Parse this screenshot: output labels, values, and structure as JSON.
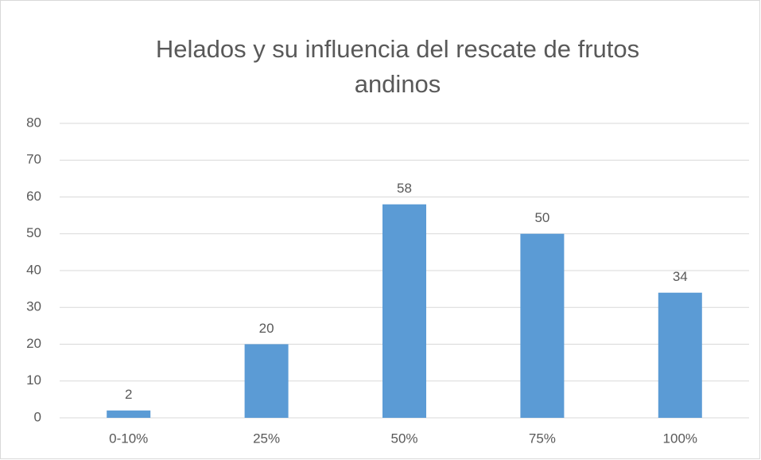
{
  "chart_data": {
    "type": "bar",
    "title": "Helados y su influencia del rescate de frutos andinos",
    "categories": [
      "0-10%",
      "25%",
      "50%",
      "75%",
      "100%"
    ],
    "values": [
      2,
      20,
      58,
      50,
      34
    ],
    "color": "#5b9bd5",
    "ylim": [
      0,
      80
    ],
    "yticks": [
      0,
      10,
      20,
      30,
      40,
      50,
      60,
      70,
      80
    ],
    "grid": true
  }
}
